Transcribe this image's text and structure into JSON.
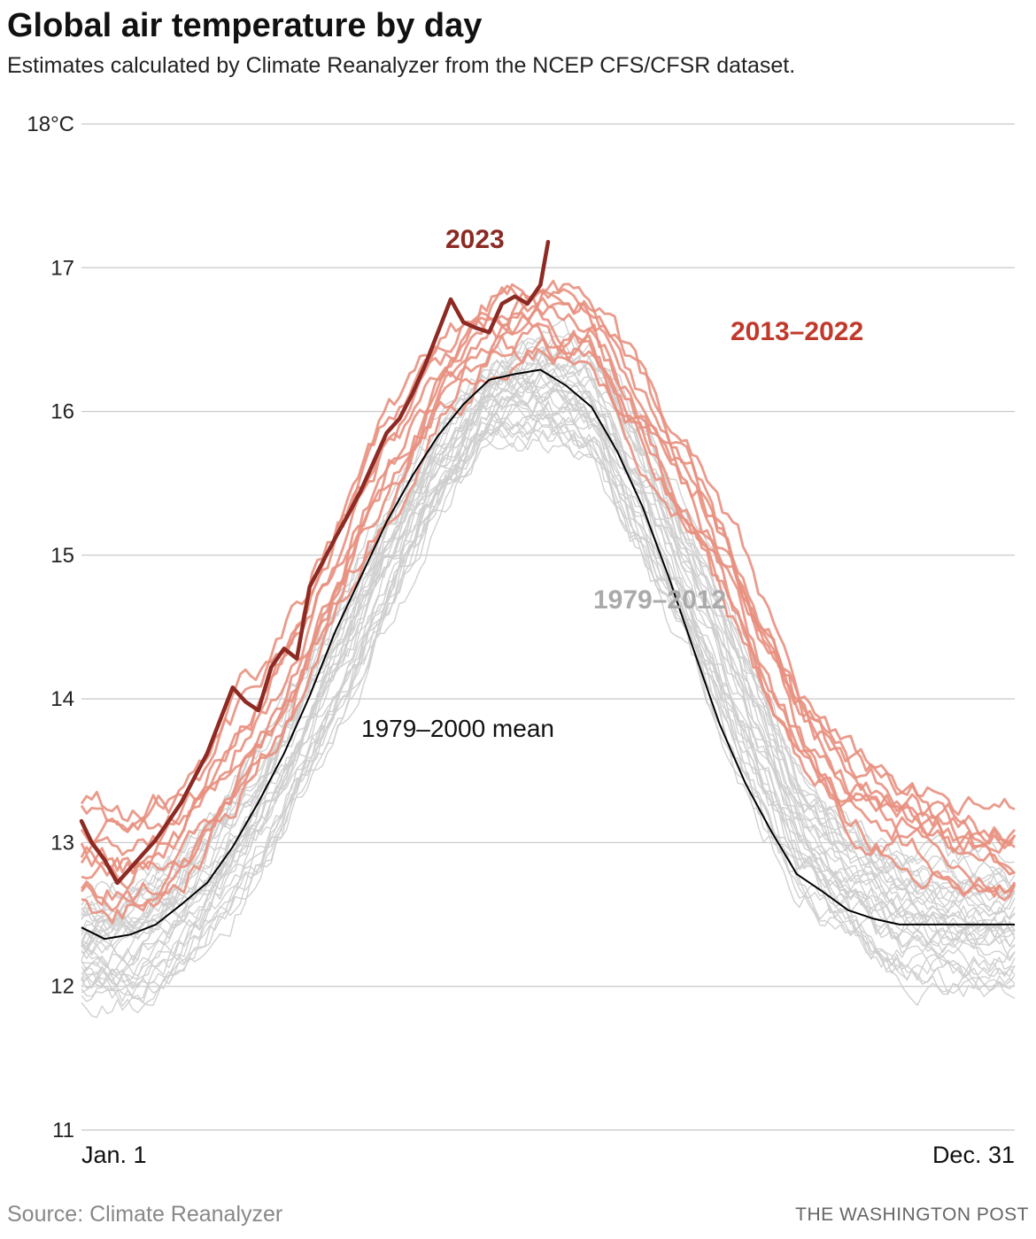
{
  "header": {
    "title": "Global air temperature by day",
    "subtitle": "Estimates calculated by Climate Reanalyzer from the NCEP CFS/CFSR dataset."
  },
  "footer": {
    "source": "Source: Climate Reanalyzer",
    "credit": "THE WASHINGTON POST"
  },
  "colors": {
    "series_2023": "#8c2a23",
    "series_2013_2022": "#e8907f",
    "series_1979_2012": "#cfcfcf",
    "mean": "#000000",
    "grid": "#c8c8c8",
    "label_2013_2022": "#c0392b",
    "label_1979_2012": "#aaaaaa"
  },
  "chart_data": {
    "type": "line",
    "title": "Global air temperature by day",
    "subtitle": "Estimates calculated by Climate Reanalyzer from the NCEP CFS/CFSR dataset.",
    "y_unit": "°C",
    "ylim": [
      11,
      18
    ],
    "yticks": [
      11,
      12,
      13,
      14,
      15,
      16,
      17,
      18
    ],
    "ytick_labels": [
      "11",
      "12",
      "13",
      "14",
      "15",
      "16",
      "17",
      "18°C"
    ],
    "xlim": [
      1,
      365
    ],
    "x_unit": "day of year",
    "xtick_labels": [
      "Jan. 1",
      "Dec. 31"
    ],
    "grid": true,
    "mean_1979_2000": {
      "name": "1979–2000 mean",
      "x": [
        1,
        10,
        20,
        30,
        40,
        50,
        60,
        70,
        80,
        90,
        100,
        110,
        120,
        130,
        140,
        150,
        160,
        170,
        180,
        190,
        200,
        210,
        220,
        230,
        240,
        250,
        260,
        270,
        280,
        290,
        300,
        310,
        320,
        330,
        340,
        350,
        365
      ],
      "values": [
        12.41,
        12.33,
        12.36,
        12.43,
        12.57,
        12.72,
        12.97,
        13.28,
        13.62,
        14.02,
        14.47,
        14.85,
        15.23,
        15.55,
        15.83,
        16.05,
        16.22,
        16.26,
        16.29,
        16.18,
        16.03,
        15.72,
        15.33,
        14.85,
        14.33,
        13.82,
        13.41,
        13.08,
        12.78,
        12.66,
        12.53,
        12.47,
        12.43,
        12.43,
        12.43,
        12.43,
        12.43
      ]
    },
    "series_2023": {
      "name": "2023",
      "x": [
        1,
        5,
        10,
        15,
        20,
        25,
        30,
        35,
        40,
        45,
        50,
        55,
        60,
        65,
        70,
        75,
        80,
        85,
        90,
        95,
        100,
        105,
        110,
        115,
        120,
        125,
        130,
        135,
        140,
        145,
        150,
        155,
        160,
        165,
        170,
        175,
        180,
        183
      ],
      "values": [
        13.15,
        13.0,
        12.88,
        12.72,
        12.82,
        12.92,
        13.02,
        13.15,
        13.28,
        13.45,
        13.62,
        13.85,
        14.08,
        13.98,
        13.92,
        14.22,
        14.35,
        14.28,
        14.78,
        14.95,
        15.12,
        15.28,
        15.45,
        15.65,
        15.85,
        15.95,
        16.12,
        16.32,
        16.55,
        16.78,
        16.62,
        16.58,
        16.55,
        16.75,
        16.8,
        16.75,
        16.88,
        17.18
      ]
    },
    "band_2013_2022": {
      "name": "2013–2022",
      "note_lines": 10,
      "x": [
        1,
        20,
        40,
        60,
        80,
        100,
        120,
        140,
        160,
        180,
        200,
        220,
        240,
        260,
        280,
        300,
        320,
        340,
        365
      ],
      "low": [
        12.5,
        12.5,
        12.7,
        13.2,
        13.8,
        14.5,
        15.3,
        15.95,
        16.3,
        16.4,
        16.3,
        15.65,
        15.05,
        14.35,
        13.6,
        13.15,
        12.95,
        12.75,
        12.6
      ],
      "high": [
        13.3,
        13.25,
        13.35,
        13.9,
        14.45,
        15.25,
        15.95,
        16.45,
        16.82,
        16.9,
        16.85,
        16.25,
        15.65,
        14.95,
        14.1,
        13.6,
        13.45,
        13.25,
        13.2
      ]
    },
    "band_1979_2012": {
      "name": "1979–2012",
      "note_lines": 34,
      "x": [
        1,
        20,
        40,
        60,
        80,
        100,
        120,
        140,
        160,
        180,
        200,
        220,
        240,
        260,
        280,
        300,
        320,
        340,
        365
      ],
      "low": [
        11.9,
        11.85,
        12.1,
        12.5,
        13.05,
        13.75,
        14.55,
        15.3,
        15.8,
        15.85,
        15.65,
        14.95,
        14.2,
        13.35,
        12.7,
        12.35,
        12.1,
        12.0,
        12.0
      ],
      "high": [
        12.6,
        12.75,
        12.95,
        13.4,
        13.95,
        14.65,
        15.35,
        15.9,
        16.35,
        16.5,
        16.4,
        15.85,
        15.15,
        14.35,
        13.5,
        13.1,
        12.95,
        12.85,
        12.85
      ]
    },
    "annotations": [
      {
        "text": "2023",
        "series": "2023"
      },
      {
        "text": "2013–2022",
        "series": "2013–2022"
      },
      {
        "text": "1979–2012",
        "series": "1979–2012"
      },
      {
        "text": "1979–2000 mean",
        "series": "1979–2000 mean"
      }
    ]
  }
}
